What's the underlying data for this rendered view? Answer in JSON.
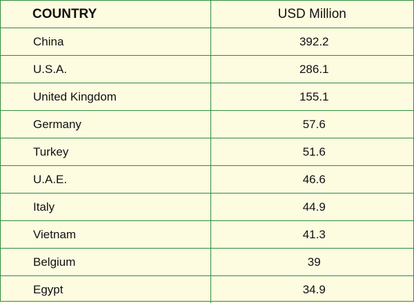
{
  "table": {
    "headers": {
      "country": "COUNTRY",
      "usd": "USD Million"
    },
    "rows": [
      {
        "country": "China",
        "value": "392.2"
      },
      {
        "country": "U.S.A.",
        "value": "286.1"
      },
      {
        "country": "United Kingdom",
        "value": "155.1"
      },
      {
        "country": "Germany",
        "value": "57.6"
      },
      {
        "country": "Turkey",
        "value": "51.6"
      },
      {
        "country": "U.A.E.",
        "value": "46.6"
      },
      {
        "country": "Italy",
        "value": "44.9"
      },
      {
        "country": "Vietnam",
        "value": "41.3"
      },
      {
        "country": "Belgium",
        "value": "39"
      },
      {
        "country": "Egypt",
        "value": "34.9"
      }
    ]
  },
  "colors": {
    "background": "#fdfbe0",
    "border": "#2e8b3e",
    "text": "#111111"
  }
}
